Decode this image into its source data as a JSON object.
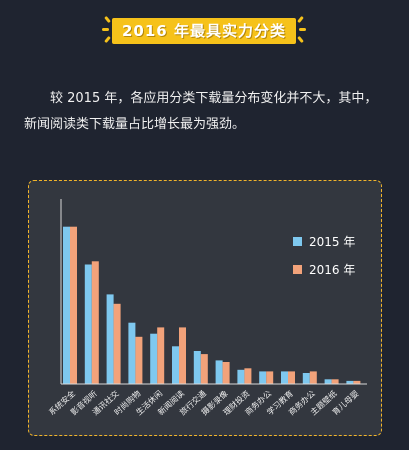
{
  "header": {
    "title": "2016 年最具实力分类"
  },
  "intro": {
    "text": "较 2015 年，各应用分类下载量分布变化并不大，其中，新闻阅读类下载量占比增长最为强劲。"
  },
  "colors": {
    "s2015": "#7ec8ef",
    "s2016": "#f2a27a",
    "accent": "#f6c21a",
    "axis": "#d8d8d8"
  },
  "chart_data": {
    "type": "bar",
    "categories": [
      "系统安全",
      "影音视听",
      "通讯社交",
      "时尚购物",
      "生活休闲",
      "新闻阅读",
      "旅行交通",
      "摄影录像",
      "理财投资",
      "商务办公",
      "学习教育",
      "商务办公",
      "主题壁纸",
      "育儿母婴"
    ],
    "series": [
      {
        "name": "2015 年",
        "values": [
          100,
          76,
          57,
          39,
          32,
          24,
          21,
          15,
          9,
          8,
          8,
          7,
          3,
          2
        ]
      },
      {
        "name": "2016 年",
        "values": [
          100,
          78,
          51,
          30,
          36,
          36,
          19,
          14,
          10,
          8,
          8,
          8,
          3,
          2
        ]
      }
    ],
    "ylim": [
      0,
      110
    ],
    "legend": "right"
  }
}
